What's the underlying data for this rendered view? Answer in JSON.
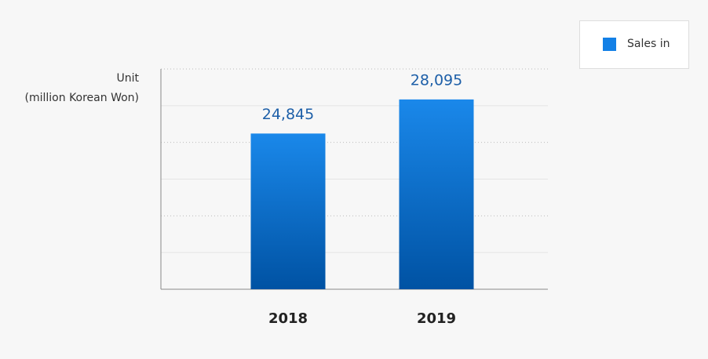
{
  "chart_data": {
    "type": "bar",
    "unit_label": [
      "Unit",
      "(million Korean Won)"
    ],
    "categories": [
      "2018",
      "2019"
    ],
    "series": [
      {
        "name": "Sales in",
        "color": "#1380e6",
        "values": [
          24845,
          28095
        ],
        "value_labels": [
          "24,845",
          "28,095"
        ]
      }
    ],
    "ylim": [
      10000,
      31000
    ],
    "yticks": [
      10000,
      13500,
      17000,
      20500,
      24000,
      27500,
      31000
    ],
    "grid": true,
    "legend": "top-right"
  }
}
